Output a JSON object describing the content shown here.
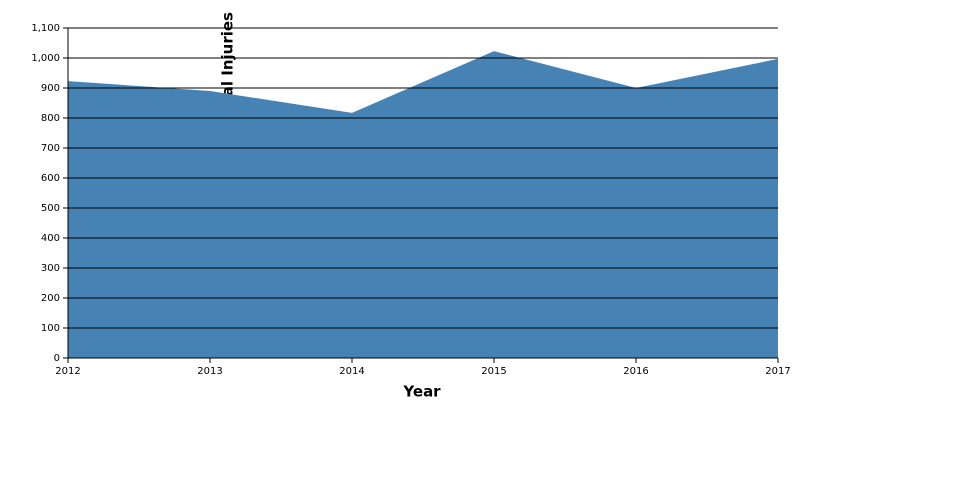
{
  "chart_data": {
    "type": "area",
    "x_label": "Year",
    "y_label": "Total Injuries",
    "x": [
      2012,
      2013,
      2014,
      2015,
      2016,
      2017
    ],
    "values": [
      923,
      890,
      817,
      1023,
      900,
      997
    ],
    "color": "#4682b4",
    "xlim": [
      2012,
      2017
    ],
    "xticks": [
      2012,
      2013,
      2014,
      2015,
      2016,
      2017
    ],
    "ylim": [
      0,
      1100
    ],
    "yticks": [
      0,
      100,
      200,
      300,
      400,
      500,
      600,
      700,
      800,
      900,
      {
        "value": 1000,
        "label": "1,000"
      },
      {
        "value": 1100,
        "label": "1,100"
      }
    ],
    "grid": true
  }
}
